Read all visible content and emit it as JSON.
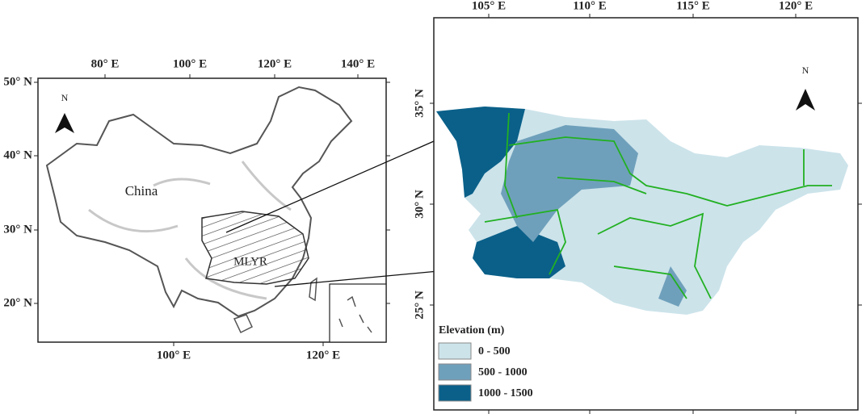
{
  "left_map": {
    "lon_ticks_top": [
      "80° E",
      "100° E",
      "120° E",
      "140° E"
    ],
    "lon_ticks_bottom": [
      "100° E",
      "120° E"
    ],
    "lat_ticks": [
      "50° N",
      "40° N",
      "30° N",
      "20° N"
    ],
    "country_label": "China",
    "region_label": "MLYR",
    "north_label": "N"
  },
  "right_map": {
    "lon_ticks": [
      "105° E",
      "110° E",
      "115° E",
      "120° E"
    ],
    "lat_ticks": [
      "35° N",
      "30° N",
      "25° N"
    ],
    "north_label": "N",
    "legend": {
      "title": "Elevation (m)",
      "items": [
        {
          "label": "0 - 500",
          "color": "#cce3ea"
        },
        {
          "label": "500 - 1000",
          "color": "#6fa0bb"
        },
        {
          "label": "1000 - 1500",
          "color": "#0a6089"
        }
      ]
    },
    "boundary_color": "#22b022"
  }
}
